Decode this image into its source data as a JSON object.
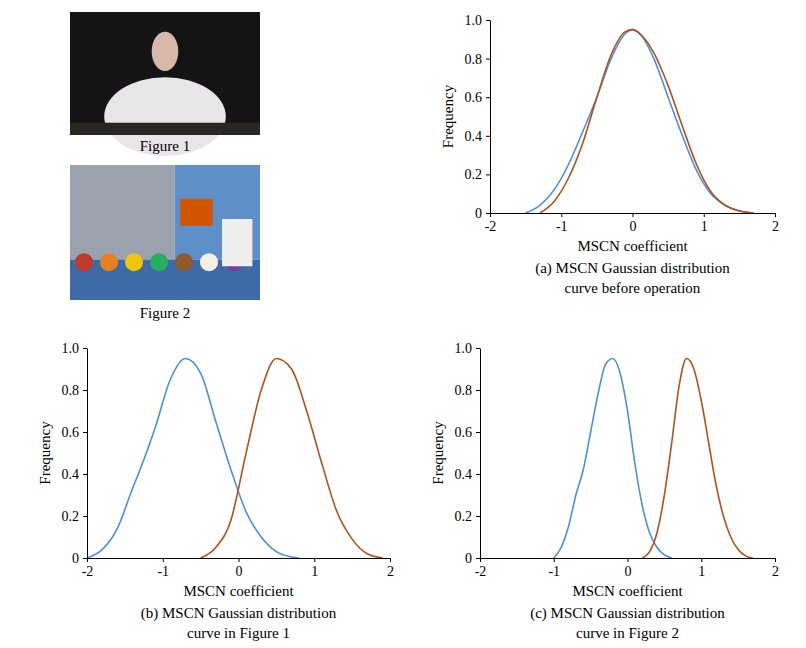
{
  "images": [
    {
      "caption": "Figure 1"
    },
    {
      "caption": "Figure 2"
    }
  ],
  "chart_data": [
    {
      "type": "line",
      "title": "(a) MSCN Gaussian distribution curve before operation",
      "x_label": "MSCN coefficient",
      "y_label": "Frequency",
      "xlim": [
        -2,
        2
      ],
      "xticks": [
        -2,
        -1,
        0,
        1,
        2
      ],
      "ylim": [
        0,
        1
      ],
      "yticks": [
        0,
        0.2,
        0.4,
        0.6,
        0.8,
        {
          "value": 1,
          "label": "1.0"
        }
      ],
      "series": [
        {
          "color": "#4f8fd6",
          "x": [
            -1.5,
            -1.3,
            -1.1,
            -0.9,
            -0.7,
            -0.5,
            -0.3,
            -0.1,
            0,
            0.1,
            0.3,
            0.5,
            0.7,
            0.9,
            1.1,
            1.3,
            1.5,
            1.7
          ],
          "values": [
            0,
            0.04,
            0.12,
            0.25,
            0.42,
            0.6,
            0.8,
            0.93,
            0.95,
            0.93,
            0.8,
            0.6,
            0.4,
            0.22,
            0.1,
            0.04,
            0.01,
            0
          ]
        },
        {
          "color": "#b0521d",
          "x": [
            -1.3,
            -1.1,
            -0.9,
            -0.7,
            -0.5,
            -0.3,
            -0.1,
            0,
            0.1,
            0.3,
            0.5,
            0.7,
            0.9,
            1.1,
            1.3,
            1.5,
            1.7
          ],
          "values": [
            0,
            0.06,
            0.18,
            0.36,
            0.6,
            0.82,
            0.94,
            0.95,
            0.93,
            0.83,
            0.66,
            0.45,
            0.25,
            0.11,
            0.04,
            0.01,
            0
          ]
        }
      ]
    },
    {
      "type": "line",
      "title": "(b) MSCN Gaussian distribution curve in Figure 1",
      "x_label": "MSCN coefficient",
      "y_label": "Frequency",
      "xlim": [
        -2,
        2
      ],
      "xticks": [
        -2,
        -1,
        0,
        1,
        2
      ],
      "ylim": [
        0,
        1
      ],
      "yticks": [
        0,
        0.2,
        0.4,
        0.6,
        0.8,
        {
          "value": 1,
          "label": "1.0"
        }
      ],
      "series": [
        {
          "color": "#4f8fd6",
          "x": [
            -2,
            -1.8,
            -1.6,
            -1.4,
            -1.3,
            -1.1,
            -0.9,
            -0.7,
            -0.5,
            -0.3,
            -0.1,
            0.1,
            0.3,
            0.5,
            0.7,
            0.8
          ],
          "values": [
            0,
            0.04,
            0.14,
            0.33,
            0.42,
            0.62,
            0.85,
            0.95,
            0.88,
            0.65,
            0.42,
            0.22,
            0.1,
            0.03,
            0.005,
            0
          ]
        },
        {
          "color": "#b0521d",
          "x": [
            -0.5,
            -0.3,
            -0.1,
            0.1,
            0.3,
            0.5,
            0.7,
            0.9,
            1.1,
            1.3,
            1.5,
            1.7,
            1.9
          ],
          "values": [
            0,
            0.05,
            0.18,
            0.5,
            0.8,
            0.95,
            0.9,
            0.7,
            0.45,
            0.22,
            0.09,
            0.02,
            0
          ]
        }
      ]
    },
    {
      "type": "line",
      "title": "(c) MSCN Gaussian distribution curve in Figure 2",
      "x_label": "MSCN coefficient",
      "y_label": "Frequency",
      "xlim": [
        -2,
        2
      ],
      "xticks": [
        -2,
        -1,
        0,
        1,
        2
      ],
      "ylim": [
        0,
        1
      ],
      "yticks": [
        0,
        0.2,
        0.4,
        0.6,
        0.8,
        {
          "value": 1,
          "label": "1.0"
        }
      ],
      "series": [
        {
          "color": "#4f8fd6",
          "x": [
            -1,
            -0.9,
            -0.8,
            -0.7,
            -0.6,
            -0.5,
            -0.4,
            -0.3,
            -0.2,
            -0.1,
            0,
            0.1,
            0.2,
            0.3,
            0.4,
            0.5,
            0.6
          ],
          "values": [
            0,
            0.05,
            0.15,
            0.3,
            0.42,
            0.6,
            0.78,
            0.92,
            0.95,
            0.88,
            0.7,
            0.45,
            0.25,
            0.12,
            0.05,
            0.015,
            0
          ]
        },
        {
          "color": "#b0521d",
          "x": [
            0.2,
            0.3,
            0.4,
            0.5,
            0.6,
            0.7,
            0.8,
            0.9,
            1.0,
            1.1,
            1.2,
            1.3,
            1.4,
            1.5,
            1.6,
            1.7
          ],
          "values": [
            0,
            0.03,
            0.12,
            0.3,
            0.55,
            0.82,
            0.95,
            0.9,
            0.75,
            0.55,
            0.35,
            0.2,
            0.1,
            0.04,
            0.01,
            0
          ]
        }
      ]
    }
  ]
}
